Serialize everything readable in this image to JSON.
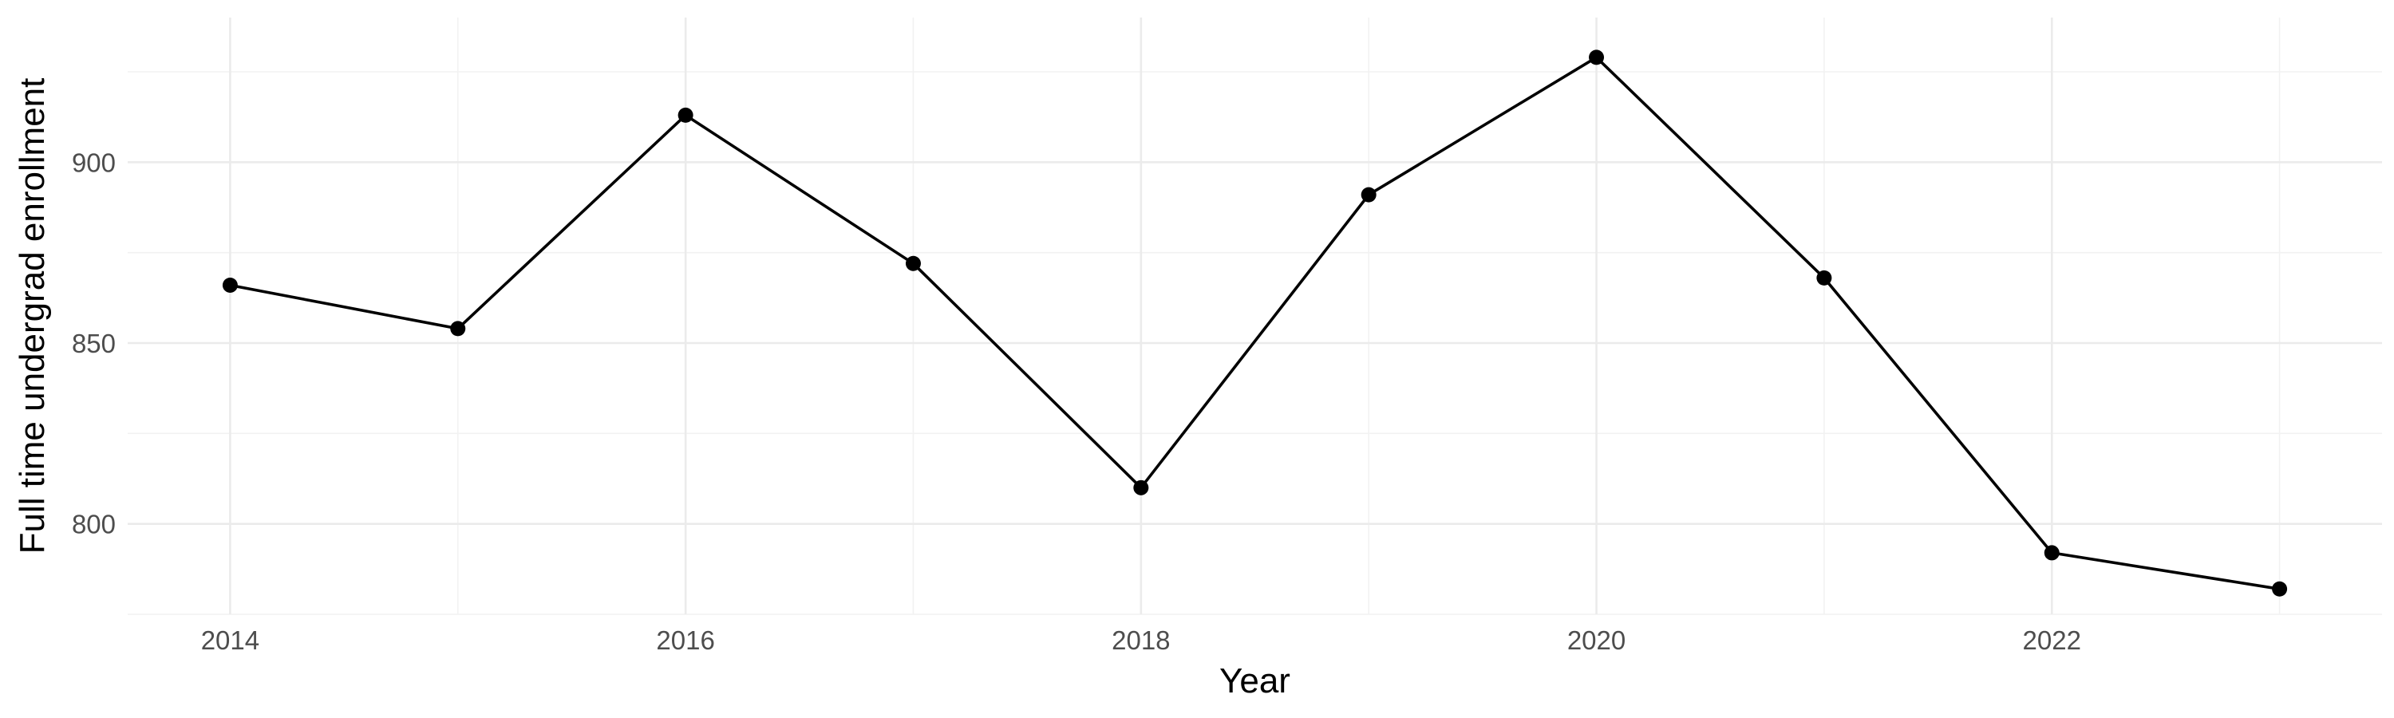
{
  "chart_data": {
    "type": "line",
    "title": "",
    "xlabel": "Year",
    "ylabel": "Full time undergrad enrollment",
    "x": [
      2014,
      2015,
      2016,
      2017,
      2018,
      2019,
      2020,
      2021,
      2022,
      2023
    ],
    "series": [
      {
        "values": [
          866,
          854,
          913,
          872,
          810,
          891,
          929,
          868,
          792,
          782
        ]
      }
    ],
    "x_ticks": [
      "2014",
      "2016",
      "2018",
      "2020",
      "2022"
    ],
    "y_ticks": [
      "800",
      "850",
      "900"
    ],
    "xlim": [
      2013.55,
      2023.45
    ],
    "ylim": [
      775,
      940
    ],
    "grid": true,
    "legend": "none",
    "colors": {
      "line": "#000000",
      "grid": "#ebebeb",
      "tick_text": "#4d4d4d"
    }
  }
}
